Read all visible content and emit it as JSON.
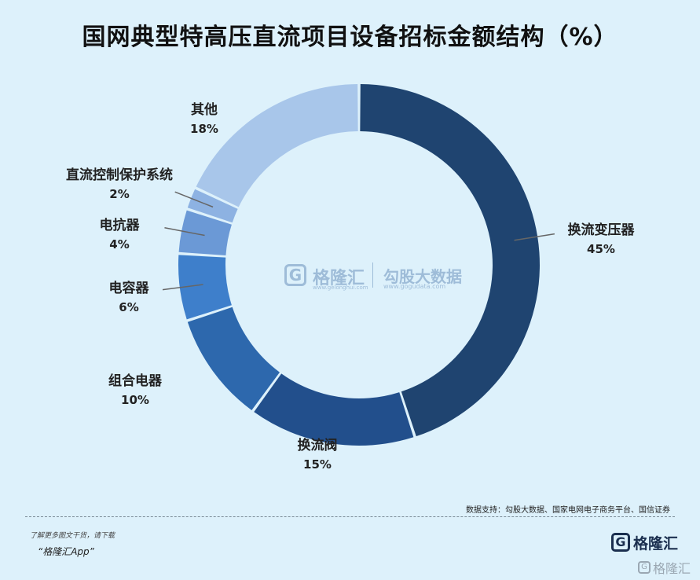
{
  "chart_data": {
    "type": "pie",
    "title": "国网典型特高压直流项目设备招标金额结构（%）",
    "categories": [
      "换流变压器",
      "换流阀",
      "组合电器",
      "电容器",
      "电抗器",
      "直流控制保护系统",
      "其他"
    ],
    "values": [
      45,
      15,
      10,
      6,
      4,
      2,
      18
    ],
    "value_labels": [
      "45%",
      "15%",
      "10%",
      "6%",
      "4%",
      "2%",
      "18%"
    ],
    "colors": [
      "#1f4470",
      "#224f8c",
      "#2d68ad",
      "#3e7fcb",
      "#6b99d6",
      "#8db2e2",
      "#a8c6ea"
    ]
  },
  "watermark": {
    "icon": "gelonghui-logo-icon",
    "brand": "格隆汇",
    "brand_url": "www.gelonghui.com",
    "partner": "勾股大数据",
    "partner_url": "www.gogudata.com"
  },
  "source": "数据支持：勾股大数据、国家电网电子商务平台、国信证券",
  "footer": {
    "promo_line1": "了解更多图文干货，请下载",
    "promo_line2": "“格隆汇App”",
    "brand_icon": "gelonghui-logo-icon",
    "brand_name": "格隆汇",
    "brand_name_small": "格隆汇"
  }
}
